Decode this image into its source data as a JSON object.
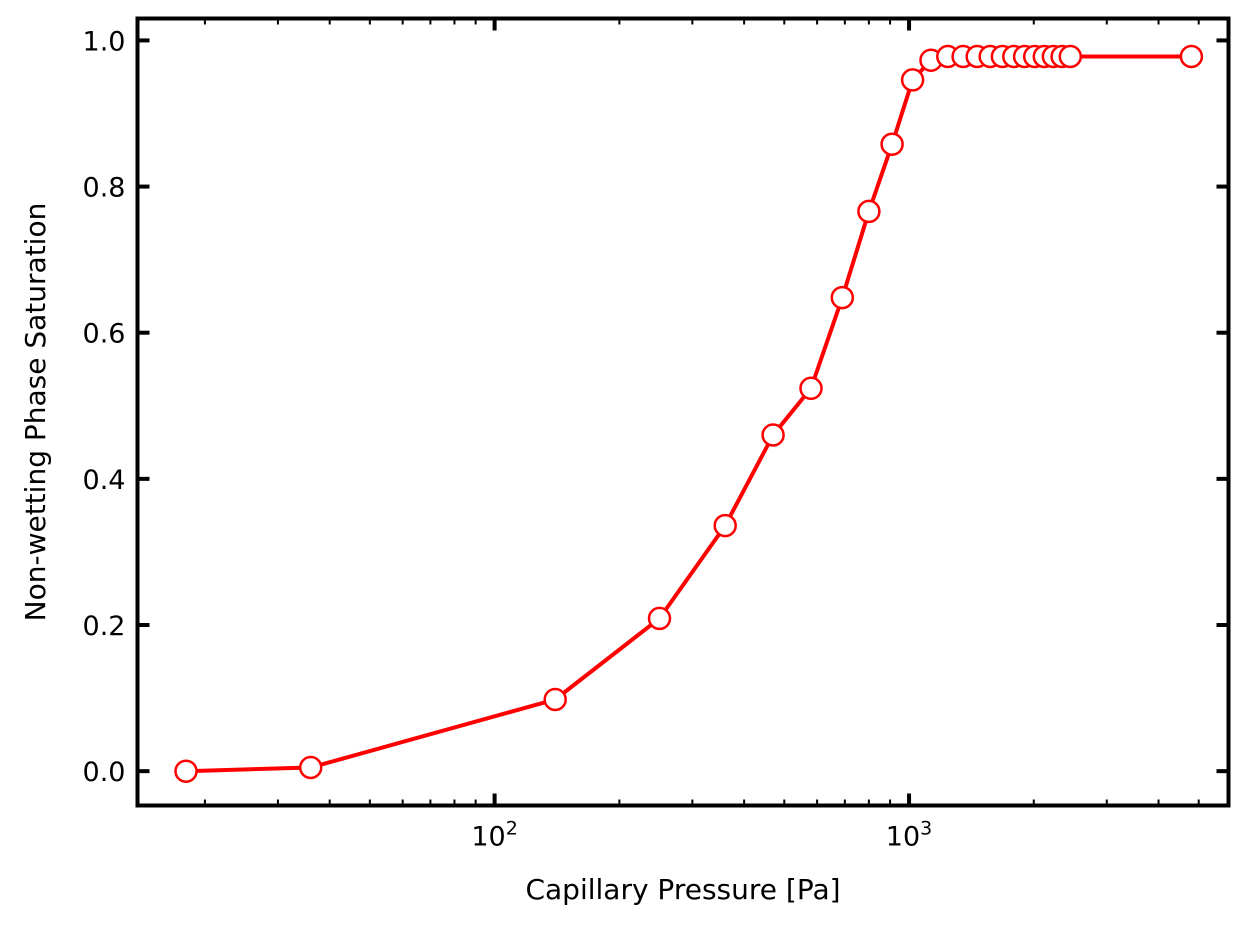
{
  "chart_data": {
    "type": "line",
    "title": "",
    "xlabel": "Capillary Pressure [Pa]",
    "ylabel": "Non-wetting Phase Saturation",
    "xscale": "log",
    "xlim": [
      13.75,
      5900
    ],
    "ylim": [
      -0.047,
      1.03
    ],
    "grid": false,
    "legend": "none",
    "x_ticks": [
      {
        "value": 100,
        "base": "10",
        "exp": "2"
      },
      {
        "value": 1000,
        "base": "10",
        "exp": "3"
      }
    ],
    "y_ticks": [
      {
        "value": 0.0,
        "label": "0.0"
      },
      {
        "value": 0.2,
        "label": "0.2"
      },
      {
        "value": 0.4,
        "label": "0.4"
      },
      {
        "value": 0.6,
        "label": "0.6"
      },
      {
        "value": 0.8,
        "label": "0.8"
      },
      {
        "value": 1.0,
        "label": "1.0"
      }
    ],
    "series": [
      {
        "color": "#ff0000",
        "marker": "open-circle",
        "x": [
          18,
          36,
          140,
          250,
          360,
          470,
          580,
          690,
          800,
          910,
          1020,
          1130,
          1240,
          1350,
          1460,
          1570,
          1680,
          1790,
          1900,
          2010,
          2120,
          2230,
          2340,
          2450,
          4800
        ],
        "y": [
          0.0,
          0.005,
          0.098,
          0.209,
          0.336,
          0.46,
          0.524,
          0.648,
          0.766,
          0.858,
          0.946,
          0.973,
          0.978,
          0.978,
          0.978,
          0.978,
          0.978,
          0.978,
          0.978,
          0.978,
          0.978,
          0.978,
          0.978,
          0.978,
          0.978
        ]
      }
    ]
  }
}
